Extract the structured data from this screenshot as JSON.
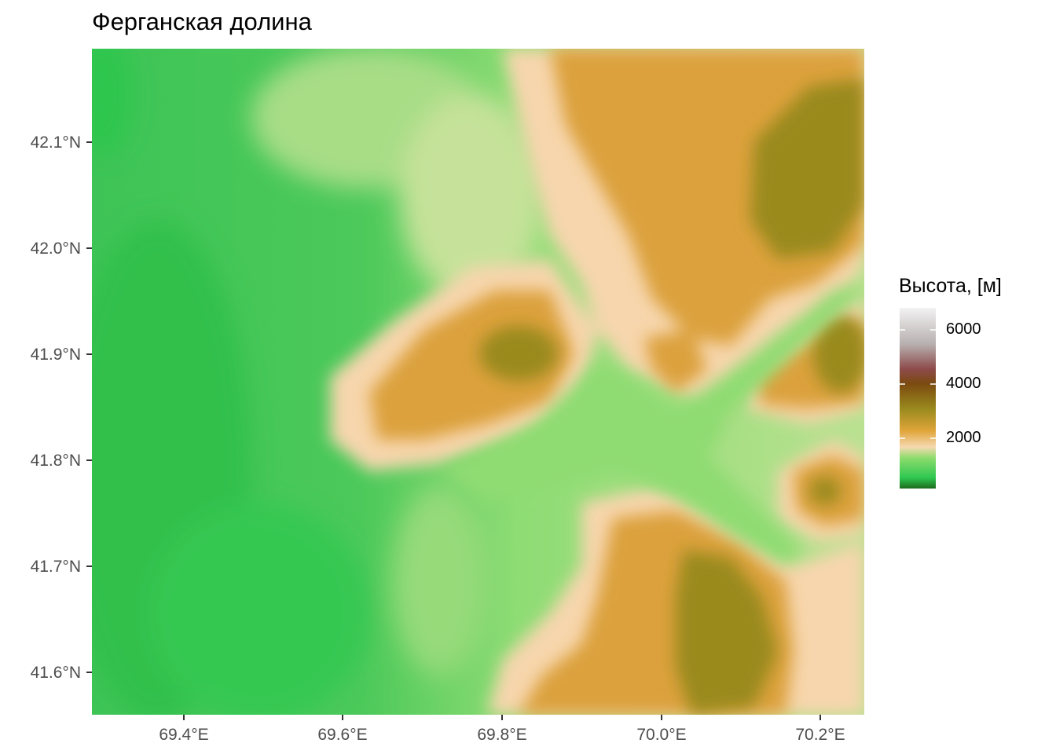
{
  "title": "Ферганская долина",
  "axes": {
    "x_ticks": [
      "69.4°E",
      "69.6°E",
      "69.8°E",
      "70.0°E",
      "70.2°E"
    ],
    "y_ticks": [
      "42.1°N",
      "42.0°N",
      "41.9°N",
      "41.8°N",
      "41.7°N",
      "41.6°N"
    ]
  },
  "legend": {
    "title": "Высота, [м]",
    "labels": [
      "6000",
      "4000",
      "2000"
    ],
    "colors": [
      "#1d6b1d",
      "#2ec850",
      "#8edc6e",
      "#f6d9b0",
      "#e0a53a",
      "#8a7a18",
      "#7b4a10",
      "#8e4a4a",
      "#b8b0b0",
      "#f2f2f2"
    ]
  },
  "map_colors": {
    "valley_green": "#3fcc55",
    "light_green": "#a8e08a",
    "sand": "#f7d6ad",
    "orange": "#dca13c",
    "olive": "#9a8a1e"
  }
}
